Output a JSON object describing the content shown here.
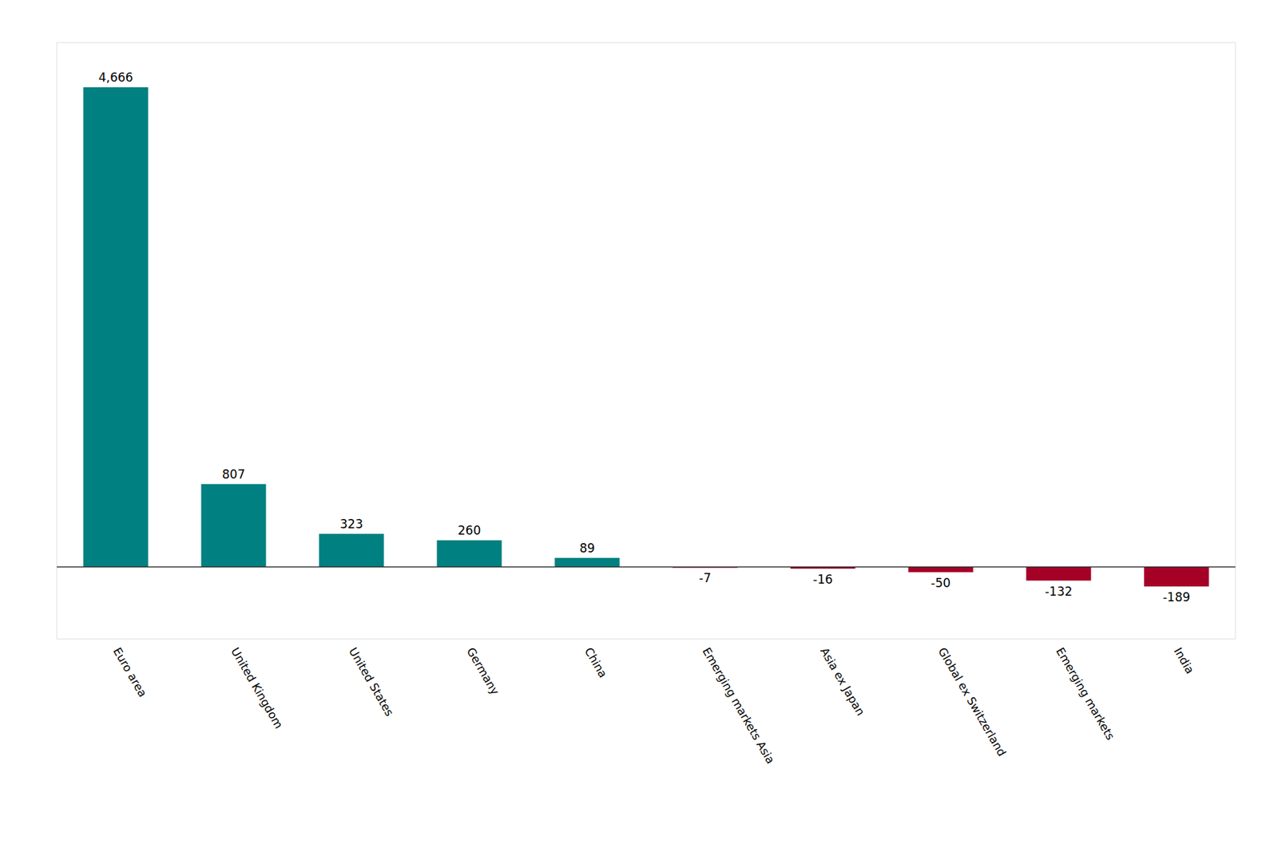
{
  "chart_data": {
    "type": "bar",
    "categories": [
      "Euro area",
      "United Kingdom",
      "United States",
      "Germany",
      "China",
      "Emerging markets Asia",
      "Asia ex Japan",
      "Global ex Switzerland",
      "Emerging markets",
      "India"
    ],
    "values": [
      4666,
      807,
      323,
      260,
      89,
      -7,
      -16,
      -50,
      -132,
      -189
    ],
    "value_labels": [
      "4,666",
      "807",
      "323",
      "260",
      "89",
      "-7",
      "-16",
      "-50",
      "-132",
      "-189"
    ],
    "colors": [
      "#008080",
      "#008080",
      "#008080",
      "#008080",
      "#008080",
      "#A50026",
      "#A50026",
      "#A50026",
      "#A50026",
      "#A50026"
    ],
    "ylim": [
      -700,
      5100
    ],
    "data_labels": true,
    "tick_labels": "x",
    "grid": false
  }
}
